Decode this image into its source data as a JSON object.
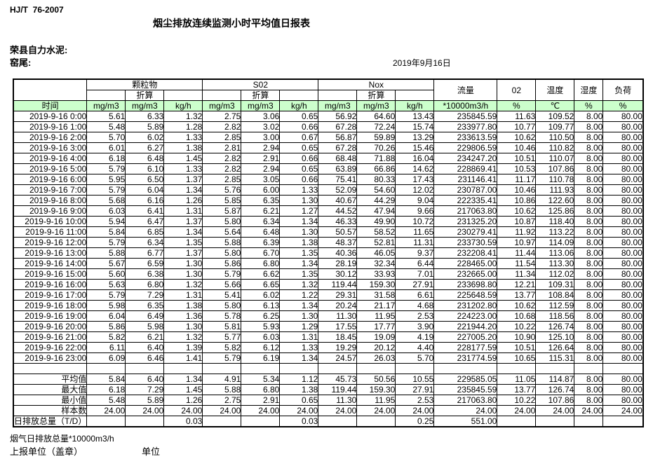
{
  "page": {
    "doc_code": "HJ/T  76-2007",
    "title": "烟尘排放连续监测小时平均值日报表",
    "company": "荣县自力水泥:",
    "location": "窑尾:",
    "date": "2019年9月16日"
  },
  "colors": {
    "header_green": "#ccffcc"
  },
  "table": {
    "header": {
      "time": "时间",
      "groups": [
        {
          "label": "颗粒物",
          "sub": "折算"
        },
        {
          "label": "S02",
          "sub": "折算"
        },
        {
          "label": "Nox",
          "sub": "折算"
        }
      ],
      "group_units": [
        "mg/m3",
        "mg/m3",
        "kg/h"
      ],
      "singles": [
        {
          "label": "流量",
          "unit": "*10000m3/h"
        },
        {
          "label": "02",
          "unit": "%"
        },
        {
          "label": "温度",
          "unit": "℃"
        },
        {
          "label": "湿度",
          "unit": "%"
        },
        {
          "label": "负荷",
          "unit": "%"
        }
      ]
    },
    "rows": [
      {
        "time": "2019-9-16 0:00",
        "values": [
          "5.61",
          "6.33",
          "1.32",
          "2.75",
          "3.06",
          "0.65",
          "56.92",
          "64.60",
          "13.43",
          "235845.59",
          "11.63",
          "109.52",
          "8.00",
          "80.00"
        ]
      },
      {
        "time": "2019-9-16 1:00",
        "values": [
          "5.48",
          "5.89",
          "1.28",
          "2.82",
          "3.02",
          "0.66",
          "67.28",
          "72.24",
          "15.74",
          "233977.80",
          "10.77",
          "109.77",
          "8.00",
          "80.00"
        ]
      },
      {
        "time": "2019-9-16 2:00",
        "values": [
          "5.70",
          "6.02",
          "1.33",
          "2.85",
          "3.00",
          "0.67",
          "56.87",
          "59.89",
          "13.29",
          "233613.59",
          "10.62",
          "110.50",
          "8.00",
          "80.00"
        ]
      },
      {
        "time": "2019-9-16 3:00",
        "values": [
          "6.01",
          "6.27",
          "1.38",
          "2.81",
          "2.94",
          "0.65",
          "67.28",
          "70.26",
          "15.46",
          "229806.59",
          "10.46",
          "110.82",
          "8.00",
          "80.00"
        ]
      },
      {
        "time": "2019-9-16 4:00",
        "values": [
          "6.18",
          "6.48",
          "1.45",
          "2.82",
          "2.91",
          "0.66",
          "68.48",
          "71.88",
          "16.04",
          "234247.20",
          "10.51",
          "110.07",
          "8.00",
          "80.00"
        ]
      },
      {
        "time": "2019-9-16 5:00",
        "values": [
          "5.79",
          "6.10",
          "1.33",
          "2.82",
          "2.94",
          "0.65",
          "63.89",
          "66.86",
          "14.62",
          "228869.41",
          "10.53",
          "107.86",
          "8.00",
          "80.00"
        ]
      },
      {
        "time": "2019-9-16 6:00",
        "values": [
          "5.95",
          "6.50",
          "1.37",
          "2.85",
          "3.05",
          "0.66",
          "75.41",
          "80.33",
          "17.43",
          "231146.41",
          "11.17",
          "110.78",
          "8.00",
          "80.00"
        ]
      },
      {
        "time": "2019-9-16 7:00",
        "values": [
          "5.79",
          "6.04",
          "1.34",
          "5.76",
          "6.00",
          "1.33",
          "52.09",
          "54.60",
          "12.02",
          "230787.00",
          "10.46",
          "111.93",
          "8.00",
          "80.00"
        ]
      },
      {
        "time": "2019-9-16 8:00",
        "values": [
          "5.68",
          "6.16",
          "1.26",
          "5.85",
          "6.35",
          "1.30",
          "40.67",
          "44.29",
          "9.04",
          "222335.41",
          "10.86",
          "122.60",
          "8.00",
          "80.00"
        ]
      },
      {
        "time": "2019-9-16 9:00",
        "values": [
          "6.03",
          "6.41",
          "1.31",
          "5.87",
          "6.21",
          "1.27",
          "44.52",
          "47.94",
          "9.66",
          "217063.80",
          "10.62",
          "125.86",
          "8.00",
          "80.00"
        ]
      },
      {
        "time": "2019-9-16 10:00",
        "values": [
          "5.94",
          "6.47",
          "1.37",
          "5.80",
          "6.34",
          "1.34",
          "46.33",
          "49.90",
          "10.72",
          "231325.20",
          "10.87",
          "118.40",
          "8.00",
          "80.00"
        ]
      },
      {
        "time": "2019-9-16 11:00",
        "values": [
          "5.84",
          "6.85",
          "1.34",
          "5.64",
          "6.48",
          "1.30",
          "50.57",
          "58.52",
          "11.65",
          "230279.41",
          "11.92",
          "113.22",
          "8.00",
          "80.00"
        ]
      },
      {
        "time": "2019-9-16 12:00",
        "values": [
          "5.79",
          "6.34",
          "1.35",
          "5.88",
          "6.39",
          "1.38",
          "48.37",
          "52.81",
          "11.31",
          "233730.59",
          "10.97",
          "114.09",
          "8.00",
          "80.00"
        ]
      },
      {
        "time": "2019-9-16 13:00",
        "values": [
          "5.88",
          "6.77",
          "1.37",
          "5.80",
          "6.70",
          "1.35",
          "40.36",
          "46.05",
          "9.37",
          "232208.41",
          "11.44",
          "113.06",
          "8.00",
          "80.00"
        ]
      },
      {
        "time": "2019-9-16 14:00",
        "values": [
          "5.67",
          "6.59",
          "1.30",
          "5.86",
          "6.80",
          "1.34",
          "28.19",
          "32.34",
          "6.44",
          "228465.00",
          "11.54",
          "113.30",
          "8.00",
          "80.00"
        ]
      },
      {
        "time": "2019-9-16 15:00",
        "values": [
          "5.60",
          "6.38",
          "1.30",
          "5.79",
          "6.62",
          "1.35",
          "30.12",
          "33.93",
          "7.01",
          "232665.00",
          "11.34",
          "112.02",
          "8.00",
          "80.00"
        ]
      },
      {
        "time": "2019-9-16 16:00",
        "values": [
          "5.63",
          "6.80",
          "1.32",
          "5.66",
          "6.65",
          "1.32",
          "119.44",
          "159.30",
          "27.91",
          "233698.80",
          "12.21",
          "109.31",
          "8.00",
          "80.00"
        ]
      },
      {
        "time": "2019-9-16 17:00",
        "values": [
          "5.79",
          "7.29",
          "1.31",
          "5.41",
          "6.02",
          "1.22",
          "29.31",
          "31.58",
          "6.61",
          "225648.59",
          "13.77",
          "108.84",
          "8.00",
          "80.00"
        ]
      },
      {
        "time": "2019-9-16 18:00",
        "values": [
          "5.98",
          "6.35",
          "1.38",
          "5.80",
          "6.13",
          "1.34",
          "20.24",
          "21.17",
          "4.68",
          "231202.80",
          "10.62",
          "112.59",
          "8.00",
          "80.00"
        ]
      },
      {
        "time": "2019-9-16 19:00",
        "values": [
          "6.04",
          "6.49",
          "1.36",
          "5.78",
          "6.25",
          "1.30",
          "11.30",
          "11.95",
          "2.53",
          "224223.00",
          "10.68",
          "118.56",
          "8.00",
          "80.00"
        ]
      },
      {
        "time": "2019-9-16 20:00",
        "values": [
          "5.86",
          "5.98",
          "1.30",
          "5.81",
          "5.93",
          "1.29",
          "17.55",
          "17.77",
          "3.90",
          "221944.20",
          "10.22",
          "126.74",
          "8.00",
          "80.00"
        ]
      },
      {
        "time": "2019-9-16 21:00",
        "values": [
          "5.82",
          "6.21",
          "1.32",
          "5.77",
          "6.03",
          "1.31",
          "18.45",
          "19.09",
          "4.19",
          "227005.20",
          "10.90",
          "125.10",
          "8.00",
          "80.00"
        ]
      },
      {
        "time": "2019-9-16 22:00",
        "values": [
          "6.11",
          "6.40",
          "1.39",
          "5.82",
          "6.12",
          "1.33",
          "19.29",
          "20.12",
          "4.40",
          "228177.59",
          "10.51",
          "126.64",
          "8.00",
          "80.00"
        ]
      },
      {
        "time": "2019-9-16 23:00",
        "values": [
          "6.09",
          "6.46",
          "1.41",
          "5.79",
          "6.19",
          "1.34",
          "24.57",
          "26.03",
          "5.70",
          "231774.59",
          "10.65",
          "115.31",
          "8.00",
          "80.00"
        ]
      }
    ],
    "summary": [
      {
        "label": "平均值",
        "values": [
          "5.84",
          "6.40",
          "1.34",
          "4.91",
          "5.34",
          "1.12",
          "45.73",
          "50.56",
          "10.55",
          "229585.05",
          "11.05",
          "114.87",
          "8.00",
          "80.00"
        ]
      },
      {
        "label": "最大值",
        "values": [
          "6.18",
          "7.29",
          "1.45",
          "5.88",
          "6.80",
          "1.38",
          "119.44",
          "159.30",
          "27.91",
          "235845.59",
          "13.77",
          "126.74",
          "8.00",
          "80.00"
        ]
      },
      {
        "label": "最小值",
        "values": [
          "5.48",
          "5.89",
          "1.26",
          "2.75",
          "2.91",
          "0.65",
          "11.30",
          "11.95",
          "2.53",
          "217063.80",
          "10.22",
          "107.86",
          "8.00",
          "80.00"
        ]
      },
      {
        "label": "样本数",
        "values": [
          "24.00",
          "24.00",
          "24.00",
          "24.00",
          "24.00",
          "24.00",
          "24.00",
          "24.00",
          "24.00",
          "24.00",
          "24.00",
          "24.00",
          "24.00",
          "24.00"
        ]
      },
      {
        "label": "日排放总量（T/D）",
        "label_align": "left",
        "values": [
          "",
          "",
          "0.03",
          "",
          "",
          "0.03",
          "",
          "",
          "0.25",
          "551.00",
          "",
          "",
          "",
          ""
        ]
      }
    ]
  },
  "footer": {
    "flow_note": "烟气日排放总量*10000m3/h",
    "report_unit": "上报单位（盖章）",
    "unit": "单位"
  }
}
